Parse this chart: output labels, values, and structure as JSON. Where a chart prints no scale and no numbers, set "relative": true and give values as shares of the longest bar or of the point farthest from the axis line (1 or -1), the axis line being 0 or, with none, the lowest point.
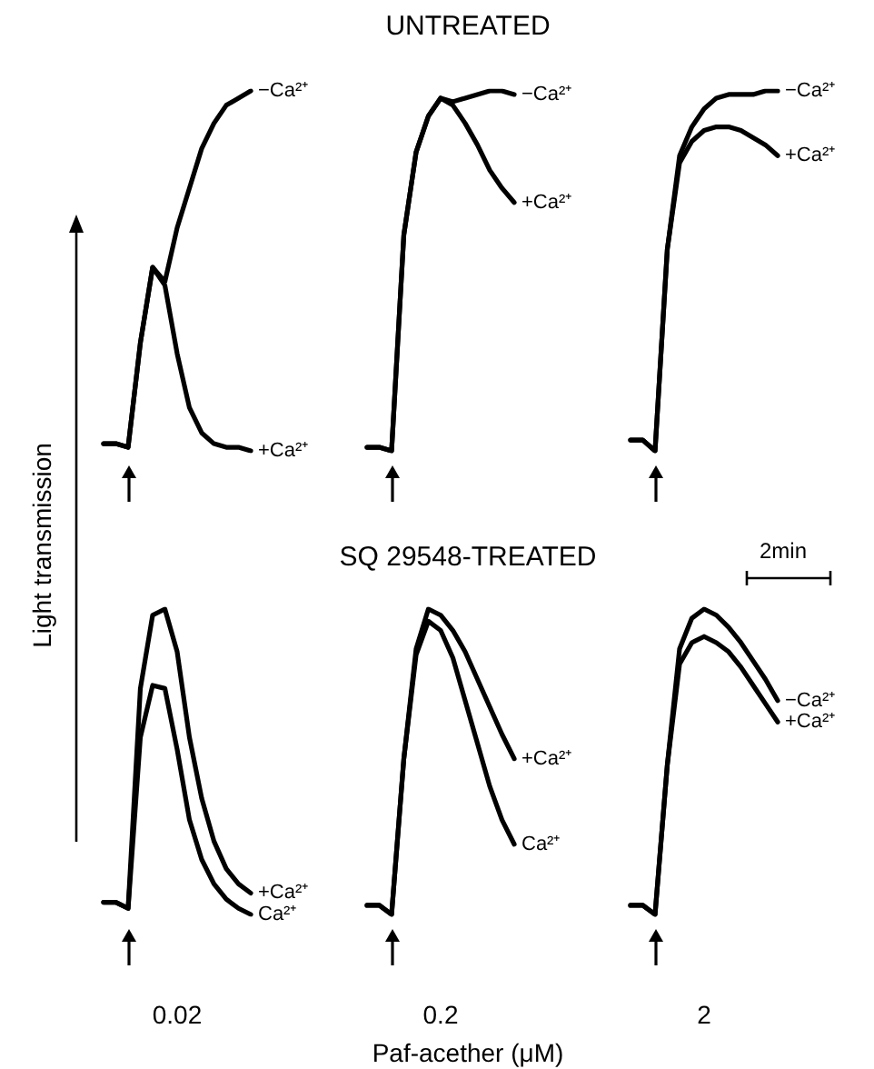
{
  "chart_data": [
    {
      "type": "line",
      "relative": true,
      "ylabel": "Light transmission",
      "categories": [
        null,
        null,
        null,
        null,
        null,
        null,
        null,
        null,
        null,
        null,
        null,
        null,
        null
      ],
      "series": [
        {
          "name": "−Ca²⁺",
          "color": "#000000",
          "values": [
            0.02,
            0.02,
            0.01,
            0.3,
            0.51,
            0.47,
            0.62,
            0.73,
            0.84,
            0.91,
            0.96,
            0.98,
            1
          ]
        },
        {
          "name": "+Ca²⁺",
          "color": "#000000",
          "values": [
            0.02,
            0.02,
            0.01,
            0.3,
            0.51,
            0.46,
            0.27,
            0.12,
            0.05,
            0.02,
            0.01,
            0.01,
            0
          ]
        }
      ]
    },
    {
      "type": "line",
      "relative": true,
      "title": "UNTREATED",
      "categories": [
        null,
        null,
        null,
        null,
        null,
        null,
        null,
        null,
        null,
        null,
        null,
        null,
        null
      ],
      "series": [
        {
          "name": "−Ca²⁺",
          "color": "#000000",
          "values": [
            0.01,
            0.01,
            0,
            0.6,
            0.83,
            0.93,
            0.98,
            0.97,
            0.98,
            0.99,
            1,
            1,
            0.99
          ]
        },
        {
          "name": "+Ca²⁺",
          "color": "#000000",
          "values": [
            0.01,
            0.01,
            0,
            0.6,
            0.83,
            0.93,
            0.98,
            0.96,
            0.91,
            0.85,
            0.78,
            0.73,
            0.69
          ]
        }
      ]
    },
    {
      "type": "line",
      "relative": true,
      "annotations": [
        "2min"
      ],
      "categories": [
        null,
        null,
        null,
        null,
        null,
        null,
        null,
        null,
        null,
        null,
        null,
        null,
        null
      ],
      "series": [
        {
          "name": "−Ca²⁺",
          "color": "#000000",
          "values": [
            0.03,
            0.03,
            0,
            0.56,
            0.82,
            0.9,
            0.95,
            0.98,
            0.99,
            0.99,
            0.99,
            1,
            1
          ]
        },
        {
          "name": "+Ca²⁺",
          "color": "#000000",
          "values": [
            0.03,
            0.03,
            0,
            0.56,
            0.8,
            0.86,
            0.89,
            0.9,
            0.9,
            0.89,
            0.87,
            0.85,
            0.82
          ]
        }
      ]
    },
    {
      "type": "line",
      "relative": true,
      "xlabel": "0.02",
      "categories": [
        null,
        null,
        null,
        null,
        null,
        null,
        null,
        null,
        null,
        null,
        null,
        null,
        null
      ],
      "series": [
        {
          "name": "+Ca²⁺",
          "color": "#000000",
          "values": [
            0.04,
            0.04,
            0.02,
            0.74,
            0.98,
            1,
            0.86,
            0.58,
            0.38,
            0.24,
            0.15,
            0.1,
            0.07
          ]
        },
        {
          "name": "Ca²⁺",
          "color": "#000000",
          "values": [
            0.04,
            0.04,
            0.02,
            0.58,
            0.75,
            0.74,
            0.54,
            0.31,
            0.18,
            0.1,
            0.05,
            0.02,
            0
          ]
        }
      ]
    },
    {
      "type": "line",
      "relative": true,
      "title": "SQ 29548-TREATED",
      "xlabel": "0.2",
      "annotations": [
        "Paf-acether (μM)"
      ],
      "categories": [
        null,
        null,
        null,
        null,
        null,
        null,
        null,
        null,
        null,
        null,
        null,
        null,
        null
      ],
      "series": [
        {
          "name": "+Ca²⁺",
          "color": "#000000",
          "values": [
            0.03,
            0.03,
            0,
            0.51,
            0.87,
            1,
            0.98,
            0.93,
            0.86,
            0.77,
            0.68,
            0.59,
            0.51
          ]
        },
        {
          "name": "Ca²⁺",
          "color": "#000000",
          "values": [
            0.03,
            0.03,
            0,
            0.51,
            0.85,
            0.96,
            0.93,
            0.84,
            0.7,
            0.56,
            0.42,
            0.31,
            0.23
          ]
        }
      ]
    },
    {
      "type": "line",
      "relative": true,
      "xlabel": "2",
      "categories": [
        null,
        null,
        null,
        null,
        null,
        null,
        null,
        null,
        null,
        null,
        null,
        null,
        null
      ],
      "series": [
        {
          "name": "−Ca²⁺",
          "color": "#000000",
          "values": [
            0.03,
            0.03,
            0,
            0.49,
            0.87,
            0.97,
            1,
            0.98,
            0.94,
            0.89,
            0.83,
            0.77,
            0.7
          ]
        },
        {
          "name": "+Ca²⁺",
          "color": "#000000",
          "values": [
            0.03,
            0.03,
            0,
            0.49,
            0.82,
            0.89,
            0.91,
            0.89,
            0.86,
            0.81,
            0.75,
            0.69,
            0.63
          ]
        }
      ]
    }
  ]
}
